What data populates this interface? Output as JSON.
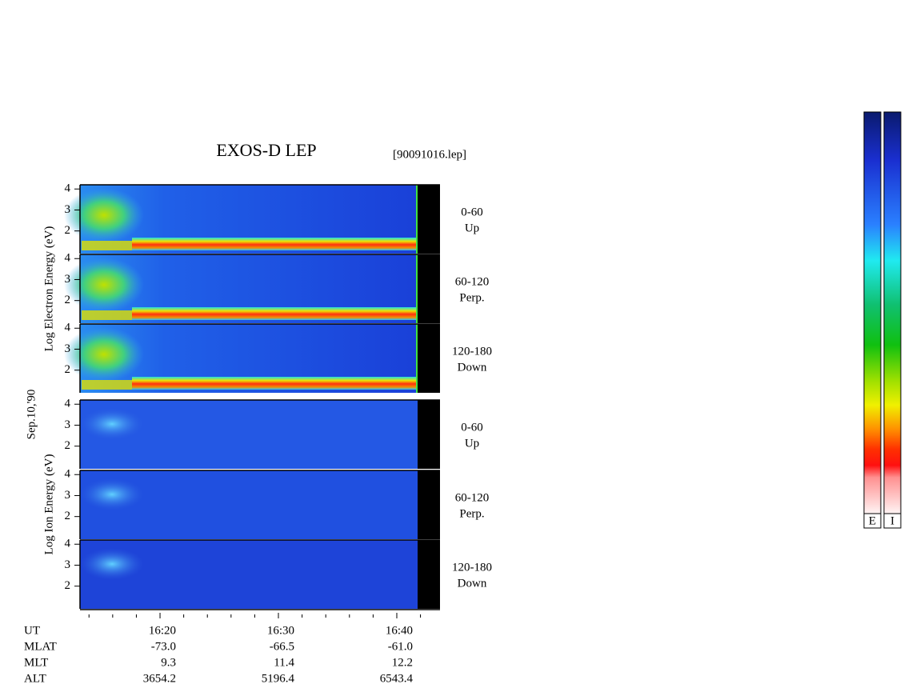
{
  "chart_data": {
    "type": "spectrogram",
    "title": "EXOS-D LEP",
    "file_label": "[90091016.lep]",
    "date_label": "Sep.10,'90",
    "groups": [
      {
        "ylabel": "Log Electron Energy (eV)",
        "panels": [
          {
            "range": "0-60",
            "direction": "Up"
          },
          {
            "range": "60-120",
            "direction": "Perp."
          },
          {
            "range": "120-180",
            "direction": "Down"
          }
        ]
      },
      {
        "ylabel": "Log Ion Energy (eV)",
        "panels": [
          {
            "range": "0-60",
            "direction": "Up"
          },
          {
            "range": "60-120",
            "direction": "Perp."
          },
          {
            "range": "120-180",
            "direction": "Down"
          }
        ]
      }
    ],
    "ylim": [
      0.92,
      4.2
    ],
    "yticks": [
      2,
      3,
      4
    ],
    "xlim": [
      973.24,
      1003.65
    ],
    "xticks": [
      {
        "value": 980,
        "label": "16:20"
      },
      {
        "value": 990,
        "label": "16:30"
      },
      {
        "value": 1000,
        "label": "16:40"
      }
    ],
    "minor_xticks": [
      974,
      976,
      978,
      982,
      984,
      986,
      988,
      992,
      994,
      996,
      998,
      1002
    ],
    "x_label": "UT",
    "orbit_rows": [
      {
        "label": "MLAT",
        "values": [
          "-73.0",
          "-66.5",
          "-61.0"
        ]
      },
      {
        "label": "MLT",
        "values": [
          "9.3",
          "11.4",
          "12.2"
        ]
      },
      {
        "label": "ALT",
        "values": [
          "3654.2",
          "5196.4",
          "6543.4"
        ]
      }
    ],
    "colorbar_labels": [
      "E",
      "I"
    ]
  }
}
